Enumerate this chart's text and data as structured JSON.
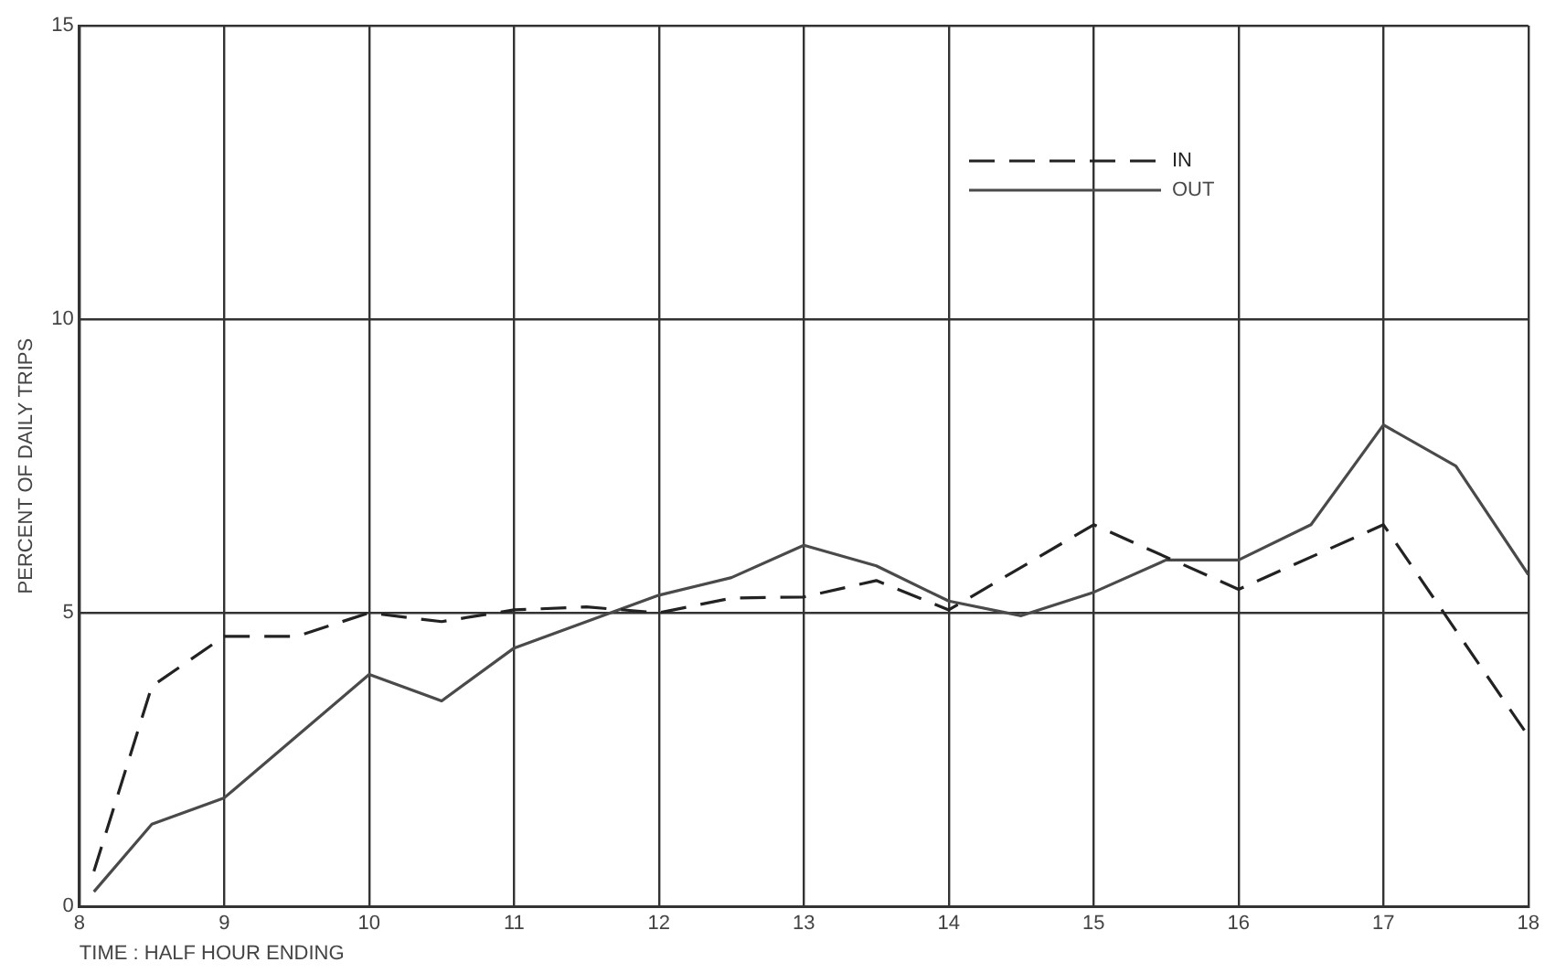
{
  "chart_data": {
    "type": "line",
    "xlabel": "TIME : HALF HOUR ENDING",
    "ylabel": "PERCENT OF DAILY TRIPS",
    "xlim": [
      8,
      18
    ],
    "xticks": [
      8,
      9,
      10,
      11,
      12,
      13,
      14,
      15,
      16,
      17,
      18
    ],
    "ylim": [
      0,
      15
    ],
    "yticks": [
      0,
      {
        "value": 5,
        "label": "5"
      },
      10,
      15
    ],
    "grid": true,
    "legend": "top right",
    "marker": "none",
    "series": [
      {
        "name": "IN",
        "color": "#222222",
        "line_style": "dashed",
        "x": [
          8.1,
          8.5,
          9,
          9.5,
          10,
          10.5,
          11,
          11.5,
          12,
          12.5,
          13,
          13.5,
          14,
          15,
          16,
          17,
          18
        ],
        "values": [
          0.6,
          3.75,
          4.6,
          4.6,
          5.0,
          4.85,
          5.05,
          5.1,
          5.0,
          5.25,
          5.27,
          5.55,
          5.05,
          6.5,
          5.4,
          6.5,
          2.9
        ]
      },
      {
        "name": "OUT",
        "color": "#4a4a4a",
        "line_style": "solid",
        "x": [
          8.1,
          8.5,
          9,
          9.5,
          10,
          10.5,
          11,
          11.5,
          12,
          12.5,
          13,
          13.5,
          14,
          14.5,
          15,
          15.5,
          16,
          16.5,
          17,
          17.5,
          18
        ],
        "values": [
          0.25,
          1.4,
          1.85,
          2.9,
          3.95,
          3.5,
          4.4,
          4.85,
          5.3,
          5.6,
          6.15,
          5.8,
          5.2,
          4.95,
          5.35,
          5.9,
          5.9,
          6.5,
          8.2,
          7.5,
          5.65
        ]
      }
    ]
  }
}
